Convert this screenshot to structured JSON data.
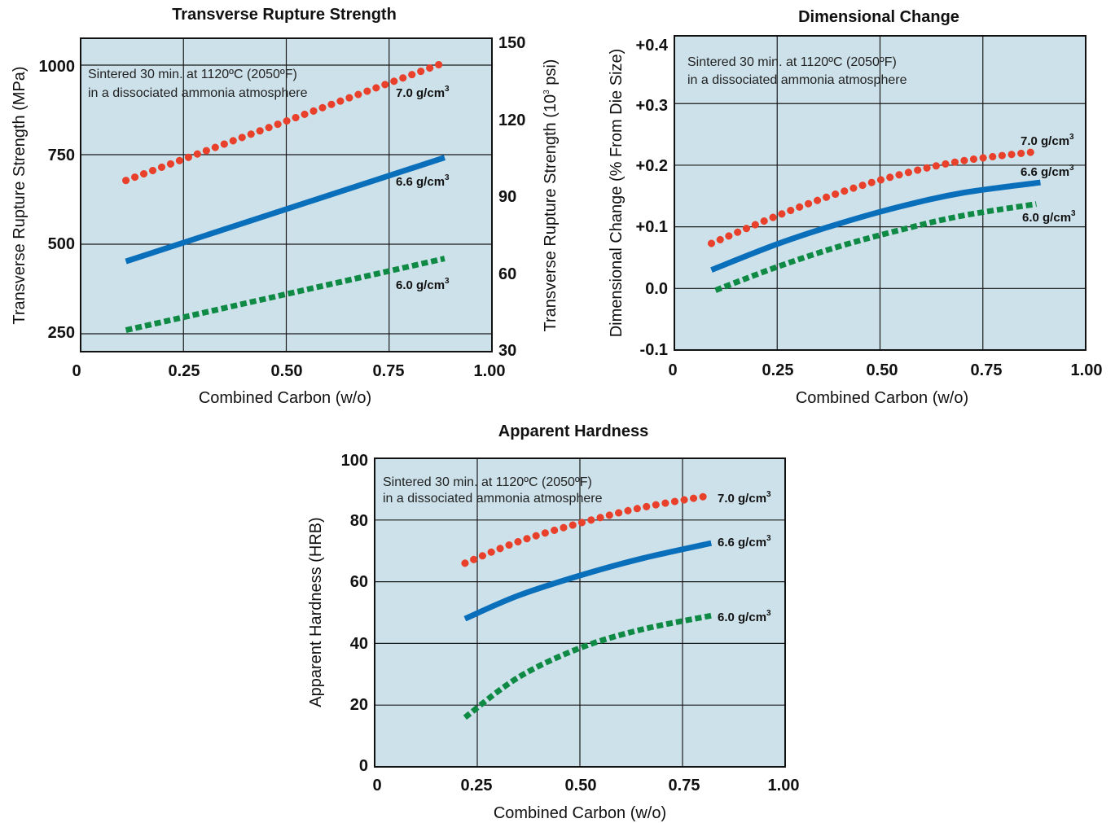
{
  "colors": {
    "plot_bg": "#cde1ea",
    "grid": "#1a1a1a",
    "density_7_0": "#e8402a",
    "density_6_6": "#0a6fbb",
    "density_6_0": "#0f8a45"
  },
  "chart_data": [
    {
      "type": "line",
      "title": "Transverse Rupture Strength",
      "xlabel": "Combined Carbon (w/o)",
      "ylabel": "Transverse Rupture Strength (MPa)",
      "y2label_prefix": "Transverse Rupture Strength (10",
      "y2label_exp": "3",
      "y2label_suffix": " psi)",
      "xlim": [
        0,
        1.0
      ],
      "ylim": [
        200,
        1075
      ],
      "xticks": [
        "0",
        "0.25",
        "0.50",
        "0.75",
        "1.00"
      ],
      "yticks": [
        "250",
        "500",
        "750",
        "1000"
      ],
      "y2ticks": [
        "30",
        "60",
        "90",
        "120",
        "150"
      ],
      "note": [
        "Sintered 30 min. at 1120ºC (2050ºF)",
        "in a dissociated ammonia atmosphere"
      ],
      "grid": true,
      "series": [
        {
          "name": "7.0 g/cm",
          "exp": "3",
          "style": "dotted",
          "x": [
            0.11,
            0.875
          ],
          "y": [
            678,
            1003
          ]
        },
        {
          "name": "6.6 g/cm",
          "exp": "3",
          "style": "solid",
          "x": [
            0.11,
            0.885
          ],
          "y": [
            452,
            742
          ]
        },
        {
          "name": "6.0 g/cm",
          "exp": "3",
          "style": "dashed",
          "x": [
            0.11,
            0.885
          ],
          "y": [
            260,
            460
          ]
        }
      ]
    },
    {
      "type": "line",
      "title": "Dimensional Change",
      "xlabel": "Combined Carbon (w/o)",
      "ylabel": "Dimensional Change (% From Die Size)",
      "xlim": [
        0,
        1.0
      ],
      "ylim": [
        -0.1,
        0.41
      ],
      "xticks": [
        "0",
        "0.25",
        "0.50",
        "0.75",
        "1.00"
      ],
      "yticks": [
        "-0.1",
        "0.0",
        "+0.1",
        "+0.2",
        "+0.3",
        "+0.4"
      ],
      "note": [
        "Sintered 30 min. at 1120ºC (2050ºF)",
        "in a dissociated ammonia atmosphere"
      ],
      "grid": true,
      "series": [
        {
          "name": "7.0 g/cm",
          "exp": "3",
          "style": "dotted",
          "x": [
            0.09,
            0.25,
            0.4,
            0.55,
            0.7,
            0.88
          ],
          "y": [
            0.073,
            0.118,
            0.155,
            0.185,
            0.207,
            0.222
          ]
        },
        {
          "name": "6.6 g/cm",
          "exp": "3",
          "style": "solid",
          "x": [
            0.09,
            0.25,
            0.4,
            0.55,
            0.7,
            0.89
          ],
          "y": [
            0.03,
            0.072,
            0.105,
            0.133,
            0.155,
            0.172
          ]
        },
        {
          "name": "6.0 g/cm",
          "exp": "3",
          "style": "dashed",
          "x": [
            0.1,
            0.25,
            0.4,
            0.55,
            0.7,
            0.88
          ],
          "y": [
            -0.003,
            0.035,
            0.068,
            0.095,
            0.118,
            0.137
          ]
        }
      ]
    },
    {
      "type": "line",
      "title": "Apparent Hardness",
      "xlabel": "Combined Carbon (w/o)",
      "ylabel": "Apparent Hardness (HRB)",
      "xlim": [
        0,
        1.0
      ],
      "ylim": [
        0,
        100
      ],
      "xticks": [
        "0",
        "0.25",
        "0.50",
        "0.75",
        "1.00"
      ],
      "yticks": [
        "0",
        "20",
        "40",
        "60",
        "80",
        "100"
      ],
      "note": [
        "Sintered 30 min. at 1120ºC (2050ºF)",
        "in a dissociated ammonia atmosphere"
      ],
      "grid": true,
      "series": [
        {
          "name": "7.0 g/cm",
          "exp": "3",
          "style": "dotted",
          "x": [
            0.22,
            0.35,
            0.5,
            0.65,
            0.82
          ],
          "y": [
            66,
            73,
            79,
            84,
            88
          ]
        },
        {
          "name": "6.6 g/cm",
          "exp": "3",
          "style": "solid",
          "x": [
            0.22,
            0.35,
            0.5,
            0.65,
            0.82
          ],
          "y": [
            48,
            55.5,
            62,
            67.5,
            72.5
          ]
        },
        {
          "name": "6.0 g/cm",
          "exp": "3",
          "style": "dashed",
          "x": [
            0.22,
            0.35,
            0.5,
            0.65,
            0.82
          ],
          "y": [
            16,
            29,
            38.5,
            44.5,
            49
          ]
        }
      ]
    }
  ]
}
